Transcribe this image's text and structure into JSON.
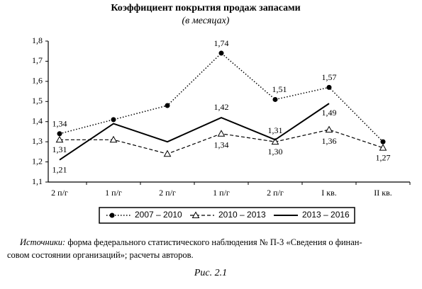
{
  "chart_data": {
    "type": "line",
    "title": "Коэффициент покрытия продаж запасами",
    "subtitle": "(в месяцах)",
    "categories": [
      "2 п/г",
      "1 п/г",
      "2 п/г",
      "1 п/г",
      "2 п/г",
      "I кв.",
      "II кв."
    ],
    "ylim": [
      1.1,
      1.8
    ],
    "yticks": [
      {
        "value": 1.1,
        "label": "1,1"
      },
      {
        "value": 1.2,
        "label": "1,2"
      },
      {
        "value": 1.3,
        "label": "1,3"
      },
      {
        "value": 1.4,
        "label": "1,4"
      },
      {
        "value": 1.5,
        "label": "1,5"
      },
      {
        "value": 1.6,
        "label": "1,6"
      },
      {
        "value": 1.7,
        "label": "1,7"
      },
      {
        "value": 1.8,
        "label": "1,8"
      }
    ],
    "series": [
      {
        "name": "2007 – 2010",
        "color": "#000000",
        "values": [
          1.34,
          1.41,
          1.48,
          1.74,
          1.51,
          1.57,
          1.3
        ],
        "value_labels": [
          "1,34",
          null,
          null,
          "1,74",
          "1,51",
          "1,57",
          null
        ]
      },
      {
        "name": "2010 – 2013",
        "color": "#000000",
        "values": [
          1.31,
          1.31,
          1.24,
          1.34,
          1.3,
          1.36,
          1.27
        ],
        "value_labels": [
          "1,31",
          null,
          null,
          "1,34",
          "1,30",
          "1,36",
          "1,27"
        ]
      },
      {
        "name": "2013 – 2016",
        "color": "#000000",
        "values": [
          1.21,
          1.39,
          1.3,
          1.42,
          1.31,
          1.49,
          null
        ],
        "value_labels": [
          "1,21",
          null,
          null,
          "1,42",
          "1,31",
          "1,49",
          null
        ]
      }
    ],
    "source_label": "Источники:",
    "source_lines": [
      "форма федерального статистического наблюдения № П-3 «Сведения о финан-",
      "совом состоянии организаций»; расчеты авторов."
    ],
    "caption": "Рис. 2.1"
  }
}
